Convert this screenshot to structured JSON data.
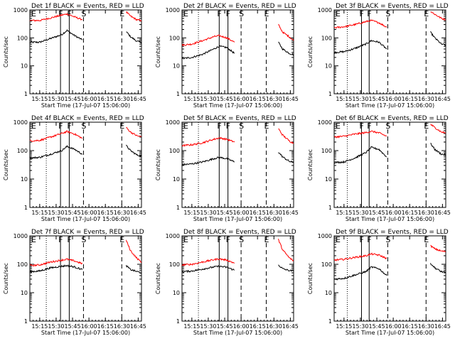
{
  "figure": {
    "xlabel": "Start Time (17-Jul-07 15:06:00)",
    "ylabel": "Counts/sec",
    "x_tick_labels": [
      "15:15",
      "15:30",
      "15:45",
      "16:00",
      "16:15",
      "16:30",
      "16:45"
    ],
    "y_tick_labels": [
      "1",
      "10",
      "100",
      "1000"
    ],
    "colors": {
      "events": "#000000",
      "lld": "#ff0000",
      "axes": "#000000",
      "background": "#ffffff"
    }
  },
  "chart_data": [
    {
      "type": "line",
      "title": "Det 1f BLACK = Events, RED = LLD",
      "xlabel": "Start Time (17-Jul-07 15:06:00)",
      "ylabel": "Counts/sec",
      "ylog": true,
      "ylim": [
        1,
        1000
      ],
      "xlim": [
        "15:06",
        "16:48"
      ],
      "x": [
        "15:06",
        "15:15",
        "15:25",
        "15:35",
        "15:40",
        "15:47",
        "15:54",
        "16:00",
        "16:30",
        "16:34",
        "16:38",
        "16:44",
        "16:48"
      ],
      "markers": [
        {
          "label": "E",
          "time": "15:06",
          "style": "solid"
        },
        {
          "label": "F",
          "time": "15:34",
          "style": "solid"
        },
        {
          "label": "F",
          "time": "15:42",
          "style": "solid"
        },
        {
          "label": "S",
          "time": "15:55",
          "style": "dashed"
        },
        {
          "label": "E",
          "time": "16:30",
          "style": "dashed"
        }
      ],
      "dotted_markers": [
        "15:21"
      ],
      "series": [
        {
          "name": "Events",
          "values": [
            70,
            70,
            95,
            130,
            185,
            120,
            85,
            null,
            null,
            170,
            110,
            75,
            70
          ]
        },
        {
          "name": "LLD",
          "values": [
            420,
            420,
            520,
            650,
            720,
            560,
            450,
            null,
            null,
            850,
            600,
            440,
            420
          ]
        }
      ]
    },
    {
      "type": "line",
      "title": "Det 2f BLACK = Events, RED = LLD",
      "xlabel": "Start Time (17-Jul-07 15:06:00)",
      "ylabel": "Counts/sec",
      "ylog": true,
      "ylim": [
        1,
        1000
      ],
      "xlim": [
        "15:06",
        "16:48"
      ],
      "x": [
        "15:06",
        "15:15",
        "15:25",
        "15:35",
        "15:40",
        "15:47",
        "15:54",
        "16:00",
        "16:30",
        "16:34",
        "16:38",
        "16:44",
        "16:48"
      ],
      "markers": [
        {
          "label": "E",
          "time": "15:06",
          "style": "solid"
        },
        {
          "label": "F",
          "time": "15:40",
          "style": "solid"
        },
        {
          "label": "F",
          "time": "15:48",
          "style": "solid"
        },
        {
          "label": "S",
          "time": "16:00",
          "style": "dashed"
        },
        {
          "label": "E",
          "time": "16:23",
          "style": "dashed"
        }
      ],
      "dotted_markers": [
        "15:21"
      ],
      "series": [
        {
          "name": "Events",
          "values": [
            18,
            20,
            26,
            40,
            50,
            45,
            28,
            null,
            null,
            70,
            40,
            28,
            25
          ]
        },
        {
          "name": "LLD",
          "values": [
            55,
            60,
            80,
            110,
            120,
            100,
            70,
            null,
            null,
            300,
            160,
            110,
            80
          ]
        }
      ]
    },
    {
      "type": "line",
      "title": "Det 3f BLACK = Events, RED = LLD",
      "xlabel": "Start Time (17-Jul-07 15:06:00)",
      "ylabel": "Counts/sec",
      "ylog": true,
      "ylim": [
        1,
        1000
      ],
      "xlim": [
        "15:06",
        "16:48"
      ],
      "x": [
        "15:06",
        "15:15",
        "15:25",
        "15:35",
        "15:40",
        "15:47",
        "15:54",
        "16:00",
        "16:30",
        "16:34",
        "16:38",
        "16:44",
        "16:48"
      ],
      "markers": [
        {
          "label": "E",
          "time": "15:06",
          "style": "solid"
        },
        {
          "label": "F",
          "time": "15:31",
          "style": "solid"
        },
        {
          "label": "F",
          "time": "15:38",
          "style": "solid"
        },
        {
          "label": "S",
          "time": "15:55",
          "style": "dashed"
        },
        {
          "label": "E",
          "time": "16:30",
          "style": "dashed"
        }
      ],
      "dotted_markers": [
        "15:18"
      ],
      "series": [
        {
          "name": "Events",
          "values": [
            30,
            32,
            42,
            60,
            80,
            70,
            40,
            null,
            null,
            160,
            100,
            60,
            55
          ]
        },
        {
          "name": "LLD",
          "values": [
            230,
            250,
            300,
            380,
            420,
            350,
            240,
            null,
            null,
            900,
            700,
            500,
            450
          ]
        }
      ]
    },
    {
      "type": "line",
      "title": "Det 4f BLACK = Events, RED = LLD",
      "xlabel": "Start Time (17-Jul-07 15:06:00)",
      "ylabel": "Counts/sec",
      "ylog": true,
      "ylim": [
        1,
        1000
      ],
      "xlim": [
        "15:06",
        "16:48"
      ],
      "x": [
        "15:06",
        "15:15",
        "15:25",
        "15:35",
        "15:40",
        "15:47",
        "15:54",
        "16:00",
        "16:30",
        "16:34",
        "16:38",
        "16:44",
        "16:48"
      ],
      "markers": [
        {
          "label": "E",
          "time": "15:06",
          "style": "solid"
        },
        {
          "label": "F",
          "time": "15:34",
          "style": "solid"
        },
        {
          "label": "F",
          "time": "15:42",
          "style": "solid"
        },
        {
          "label": "S",
          "time": "15:55",
          "style": "dashed"
        },
        {
          "label": "E",
          "time": "16:30",
          "style": "dashed"
        }
      ],
      "dotted_markers": [
        "15:21"
      ],
      "series": [
        {
          "name": "Events",
          "values": [
            55,
            58,
            75,
            100,
            140,
            110,
            75,
            null,
            null,
            150,
            100,
            70,
            65
          ]
        },
        {
          "name": "LLD",
          "values": [
            220,
            230,
            300,
            400,
            470,
            380,
            270,
            null,
            null,
            650,
            450,
            330,
            310
          ]
        }
      ]
    },
    {
      "type": "line",
      "title": "Det 5f BLACK = Events, RED = LLD",
      "xlabel": "Start Time (17-Jul-07 15:06:00)",
      "ylabel": "Counts/sec",
      "ylog": true,
      "ylim": [
        1,
        1000
      ],
      "xlim": [
        "15:06",
        "16:48"
      ],
      "x": [
        "15:06",
        "15:15",
        "15:25",
        "15:35",
        "15:40",
        "15:47",
        "15:54",
        "16:00",
        "16:30",
        "16:34",
        "16:38",
        "16:44",
        "16:48"
      ],
      "markers": [
        {
          "label": "E",
          "time": "15:06",
          "style": "solid"
        },
        {
          "label": "F",
          "time": "15:40",
          "style": "solid"
        },
        {
          "label": "F",
          "time": "15:48",
          "style": "solid"
        },
        {
          "label": "S",
          "time": "16:00",
          "style": "dashed"
        },
        {
          "label": "E",
          "time": "16:23",
          "style": "dashed"
        }
      ],
      "dotted_markers": [
        "15:21"
      ],
      "series": [
        {
          "name": "Events",
          "values": [
            32,
            34,
            40,
            52,
            58,
            52,
            40,
            null,
            null,
            90,
            60,
            42,
            38
          ]
        },
        {
          "name": "LLD",
          "values": [
            150,
            160,
            190,
            250,
            280,
            250,
            200,
            null,
            null,
            600,
            350,
            220,
            180
          ]
        }
      ]
    },
    {
      "type": "line",
      "title": "Det 6f BLACK = Events, RED = LLD",
      "xlabel": "Start Time (17-Jul-07 15:06:00)",
      "ylabel": "Counts/sec",
      "ylog": true,
      "ylim": [
        1,
        1000
      ],
      "xlim": [
        "15:06",
        "16:48"
      ],
      "x": [
        "15:06",
        "15:15",
        "15:25",
        "15:35",
        "15:40",
        "15:47",
        "15:54",
        "16:00",
        "16:30",
        "16:34",
        "16:38",
        "16:44",
        "16:48"
      ],
      "markers": [
        {
          "label": "E",
          "time": "15:06",
          "style": "solid"
        },
        {
          "label": "F",
          "time": "15:31",
          "style": "solid"
        },
        {
          "label": "F",
          "time": "15:38",
          "style": "solid"
        },
        {
          "label": "S",
          "time": "15:55",
          "style": "dashed"
        },
        {
          "label": "E",
          "time": "16:30",
          "style": "dashed"
        }
      ],
      "dotted_markers": [
        "15:18"
      ],
      "series": [
        {
          "name": "Events",
          "values": [
            38,
            40,
            55,
            85,
            130,
            110,
            60,
            null,
            null,
            180,
            110,
            75,
            70
          ]
        },
        {
          "name": "LLD",
          "values": [
            300,
            320,
            380,
            430,
            480,
            420,
            320,
            null,
            null,
            850,
            650,
            450,
            420
          ]
        }
      ]
    },
    {
      "type": "line",
      "title": "Det 7f BLACK = Events, RED = LLD",
      "xlabel": "Start Time (17-Jul-07 15:06:00)",
      "ylabel": "Counts/sec",
      "ylog": true,
      "ylim": [
        1,
        1000
      ],
      "xlim": [
        "15:06",
        "16:48"
      ],
      "x": [
        "15:06",
        "15:15",
        "15:25",
        "15:35",
        "15:40",
        "15:47",
        "15:54",
        "16:00",
        "16:30",
        "16:34",
        "16:38",
        "16:44",
        "16:48"
      ],
      "markers": [
        {
          "label": "E",
          "time": "15:06",
          "style": "solid"
        },
        {
          "label": "F",
          "time": "15:34",
          "style": "solid"
        },
        {
          "label": "F",
          "time": "15:42",
          "style": "solid"
        },
        {
          "label": "S",
          "time": "15:55",
          "style": "dashed"
        },
        {
          "label": "E",
          "time": "16:30",
          "style": "dashed"
        }
      ],
      "dotted_markers": [
        "15:21"
      ],
      "series": [
        {
          "name": "Events",
          "values": [
            55,
            58,
            75,
            85,
            90,
            80,
            65,
            null,
            null,
            90,
            65,
            55,
            50
          ]
        },
        {
          "name": "LLD",
          "values": [
            90,
            95,
            120,
            140,
            150,
            130,
            105,
            null,
            null,
            700,
            300,
            160,
            120
          ]
        }
      ]
    },
    {
      "type": "line",
      "title": "Det 8f BLACK = Events, RED = LLD",
      "xlabel": "Start Time (17-Jul-07 15:06:00)",
      "ylabel": "Counts/sec",
      "ylog": true,
      "ylim": [
        1,
        1000
      ],
      "xlim": [
        "15:06",
        "16:48"
      ],
      "x": [
        "15:06",
        "15:15",
        "15:25",
        "15:35",
        "15:40",
        "15:47",
        "15:54",
        "16:00",
        "16:30",
        "16:34",
        "16:38",
        "16:44",
        "16:48"
      ],
      "markers": [
        {
          "label": "E",
          "time": "15:06",
          "style": "solid"
        },
        {
          "label": "F",
          "time": "15:40",
          "style": "solid"
        },
        {
          "label": "F",
          "time": "15:48",
          "style": "solid"
        },
        {
          "label": "S",
          "time": "16:00",
          "style": "dashed"
        },
        {
          "label": "E",
          "time": "16:23",
          "style": "dashed"
        }
      ],
      "dotted_markers": [
        "15:21"
      ],
      "series": [
        {
          "name": "Events",
          "values": [
            55,
            58,
            68,
            80,
            85,
            78,
            62,
            null,
            null,
            95,
            70,
            60,
            58
          ]
        },
        {
          "name": "LLD",
          "values": [
            95,
            100,
            120,
            145,
            155,
            140,
            110,
            null,
            null,
            750,
            320,
            170,
            130
          ]
        }
      ]
    },
    {
      "type": "line",
      "title": "Det 9f BLACK = Events, RED = LLD",
      "xlabel": "Start Time (17-Jul-07 15:06:00)",
      "ylabel": "Counts/sec",
      "ylog": true,
      "ylim": [
        1,
        1000
      ],
      "xlim": [
        "15:06",
        "16:48"
      ],
      "x": [
        "15:06",
        "15:15",
        "15:25",
        "15:35",
        "15:40",
        "15:47",
        "15:54",
        "16:00",
        "16:30",
        "16:34",
        "16:38",
        "16:44",
        "16:48"
      ],
      "markers": [
        {
          "label": "E",
          "time": "15:06",
          "style": "solid"
        },
        {
          "label": "F",
          "time": "15:31",
          "style": "solid"
        },
        {
          "label": "F",
          "time": "15:38",
          "style": "solid"
        },
        {
          "label": "S",
          "time": "15:55",
          "style": "dashed"
        },
        {
          "label": "E",
          "time": "16:30",
          "style": "dashed"
        }
      ],
      "dotted_markers": [
        "15:18"
      ],
      "series": [
        {
          "name": "Events",
          "values": [
            30,
            32,
            42,
            55,
            80,
            70,
            40,
            null,
            null,
            110,
            75,
            55,
            50
          ]
        },
        {
          "name": "LLD",
          "values": [
            140,
            150,
            175,
            200,
            230,
            210,
            160,
            null,
            null,
            450,
            350,
            290,
            280
          ]
        }
      ]
    }
  ]
}
